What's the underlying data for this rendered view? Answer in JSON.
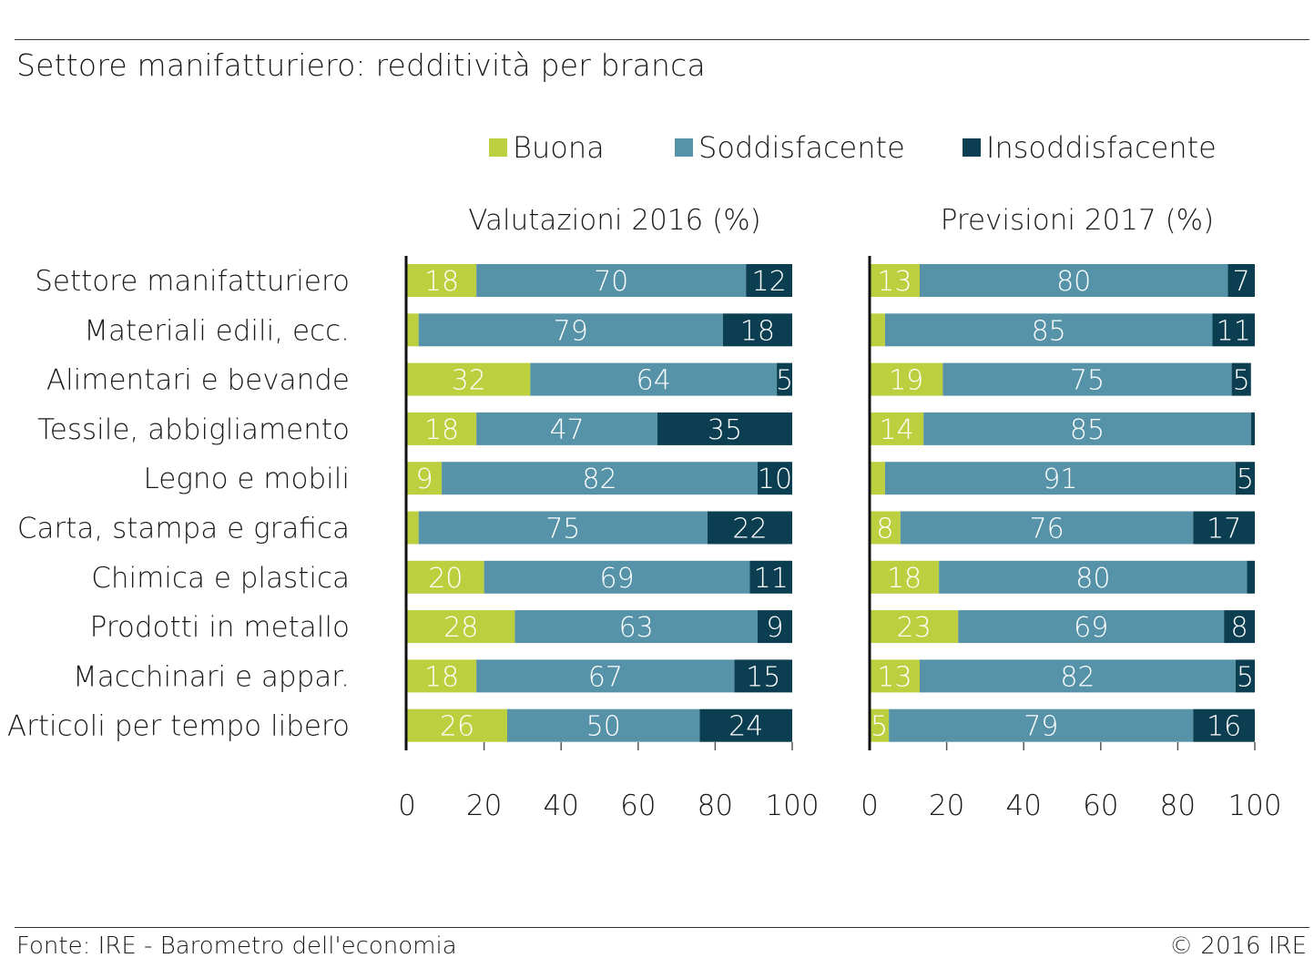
{
  "title": "Settore manifatturiero: redditività per branca",
  "footer": {
    "source": "Fonte: IRE - Barometro dell'economia",
    "copyright": "© 2016 IRE"
  },
  "colors": {
    "buona": "#bccf3e",
    "soddisfacente": "#5693a8",
    "insoddisfacente": "#0b3e50",
    "text": "#1a1a1a",
    "grid": "#555555",
    "bar_label": "#ffffff"
  },
  "legend": [
    {
      "label": "Buona",
      "color": "#bccf3e"
    },
    {
      "label": "Soddisfacente",
      "color": "#5693a8"
    },
    {
      "label": "Insoddisfacente",
      "color": "#0b3e50"
    }
  ],
  "chart_data": [
    {
      "type": "bar",
      "orientation": "horizontal",
      "stacked": true,
      "title": "Valutazioni 2016 (%)",
      "categories": [
        "Settore manifatturiero",
        "Materiali edili, ecc.",
        "Alimentari e bevande",
        "Tessile, abbigliamento",
        "Legno e mobili",
        "Carta, stampa e grafica",
        "Chimica e plastica",
        "Prodotti in metallo",
        "Macchinari e appar.",
        "Articoli per tempo libero"
      ],
      "series": [
        {
          "name": "Buona",
          "values": [
            18,
            3,
            32,
            18,
            9,
            3,
            20,
            28,
            18,
            26
          ],
          "labels": [
            "18",
            "",
            "32",
            "18",
            "9",
            "",
            "20",
            "28",
            "18",
            "26"
          ]
        },
        {
          "name": "Soddisfacente",
          "values": [
            70,
            79,
            64,
            47,
            82,
            75,
            69,
            63,
            67,
            50
          ],
          "labels": [
            "70",
            "79",
            "64",
            "47",
            "82",
            "75",
            "69",
            "63",
            "67",
            "50"
          ]
        },
        {
          "name": "Insoddisfacente",
          "values": [
            12,
            18,
            5,
            35,
            10,
            22,
            11,
            9,
            15,
            24
          ],
          "labels": [
            "12",
            "18",
            "5",
            "35",
            "10",
            "22",
            "11",
            "9",
            "15",
            "24"
          ]
        }
      ],
      "xlim": [
        0,
        100
      ],
      "xticks": [
        0,
        20,
        40,
        60,
        80,
        100
      ],
      "tick_labels": [
        "0",
        "20",
        "40",
        "60",
        "80",
        "100"
      ],
      "grid": "vertical tick marks"
    },
    {
      "type": "bar",
      "orientation": "horizontal",
      "stacked": true,
      "title": "Previsioni 2017 (%)",
      "categories": [
        "Settore manifatturiero",
        "Materiali edili, ecc.",
        "Alimentari e bevande",
        "Tessile, abbigliamento",
        "Legno e mobili",
        "Carta, stampa e grafica",
        "Chimica e plastica",
        "Prodotti in metallo",
        "Macchinari e appar.",
        "Articoli per tempo libero"
      ],
      "series": [
        {
          "name": "Buona",
          "values": [
            13,
            4,
            19,
            14,
            4,
            8,
            18,
            23,
            13,
            5
          ],
          "labels": [
            "13",
            "",
            "19",
            "14",
            "",
            "8",
            "18",
            "23",
            "13",
            "5"
          ]
        },
        {
          "name": "Soddisfacente",
          "values": [
            80,
            85,
            75,
            85,
            91,
            76,
            80,
            69,
            82,
            79
          ],
          "labels": [
            "80",
            "85",
            "75",
            "85",
            "91",
            "76",
            "80",
            "69",
            "82",
            "79"
          ]
        },
        {
          "name": "Insoddisfacente",
          "values": [
            7,
            11,
            5,
            1,
            5,
            17,
            2,
            8,
            5,
            16
          ],
          "labels": [
            "7",
            "11",
            "5",
            "",
            "5",
            "17",
            "",
            "8",
            "5",
            "16"
          ]
        }
      ],
      "xlim": [
        0,
        100
      ],
      "xticks": [
        0,
        20,
        40,
        60,
        80,
        100
      ],
      "tick_labels": [
        "0",
        "20",
        "40",
        "60",
        "80",
        "100"
      ],
      "grid": "vertical tick marks"
    }
  ]
}
